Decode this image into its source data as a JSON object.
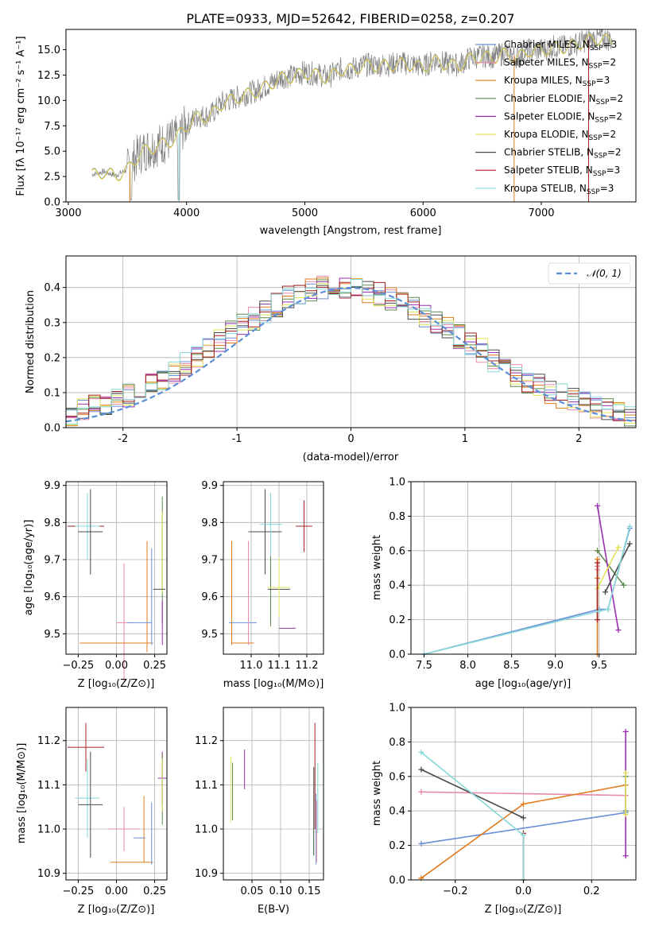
{
  "title": "PLATE=0933, MJD=52642, FIBERID=0258, z=0.207",
  "colors": {
    "Chabrier MILES": "#6a8fd8",
    "Salpeter MILES": "#e88aa8",
    "Kroupa MILES": "#e07c1e",
    "Chabrier ELODIE": "#5e8a4e",
    "Salpeter ELODIE": "#9a2fb0",
    "Kroupa ELODIE": "#e2e45a",
    "Chabrier STELIB": "#4a4a4a",
    "Salpeter STELIB": "#a52020",
    "Kroupa STELIB": "#88d8d8",
    "normal": "#5a8fd8",
    "data": "#808080"
  },
  "chart_data": [
    {
      "type": "line",
      "xlabel": "wavelength [Angstrom, rest frame]",
      "ylabel": "Flux [fλ 10⁻¹⁷ erg cm⁻² s⁻¹ A⁻¹]",
      "xlim": [
        2980,
        7800
      ],
      "ylim": [
        0,
        17
      ],
      "xticks": [
        3000,
        4000,
        5000,
        6000,
        7000
      ],
      "yticks": [
        0.0,
        2.5,
        5.0,
        7.5,
        10.0,
        12.5,
        15.0
      ],
      "x": [
        3200,
        3300,
        3400,
        3500,
        3600,
        3700,
        3800,
        3900,
        4000,
        4100,
        4200,
        4300,
        4400,
        4500,
        4600,
        4700,
        4800,
        4900,
        5000,
        5100,
        5200,
        5300,
        5400,
        5500,
        5600,
        5700,
        5800,
        5900,
        6000,
        6100,
        6200,
        6300,
        6400,
        6500,
        6600,
        6700,
        6800,
        6900,
        7000,
        7100,
        7200,
        7300,
        7400,
        7500,
        7600
      ],
      "y": [
        2.7,
        3.0,
        2.6,
        3.2,
        4.8,
        5.4,
        5.8,
        6.2,
        7.6,
        8.5,
        8.5,
        9.8,
        10.2,
        10.6,
        11.0,
        11.6,
        12.3,
        12.4,
        12.8,
        12.6,
        12.3,
        13.1,
        13.1,
        13.5,
        13.5,
        13.5,
        13.7,
        13.6,
        13.3,
        14.0,
        13.6,
        13.5,
        14.2,
        14.4,
        14.3,
        14.7,
        14.3,
        15.0,
        15.0,
        15.3,
        15.3,
        15.6,
        16.0,
        16.2,
        15.9
      ],
      "legend": [
        "Chabrier MILES, N_SSP=3",
        "Salpeter MILES, N_SSP=2",
        "Kroupa MILES, N_SSP=3",
        "Chabrier ELODIE, N_SSP=2",
        "Salpeter ELODIE, N_SSP=2",
        "Kroupa ELODIE, N_SSP=2",
        "Chabrier STELIB, N_SSP=2",
        "Salpeter STELIB, N_SSP=3",
        "Kroupa STELIB, N_SSP=3"
      ]
    },
    {
      "type": "line",
      "xlabel": "(data-model)/error",
      "ylabel": "Normed distribution",
      "xlim": [
        -2.5,
        2.5
      ],
      "ylim": [
        0,
        0.49
      ],
      "xticks": [
        -2,
        -1,
        0,
        1,
        2
      ],
      "yticks": [
        0.0,
        0.1,
        0.2,
        0.3,
        0.4
      ],
      "grid": true,
      "normal_label": "𝒩(0, 1)",
      "bins": [
        -2.5,
        -2.4,
        -2.3,
        -2.2,
        -2.1,
        -2.0,
        -1.9,
        -1.8,
        -1.7,
        -1.6,
        -1.5,
        -1.4,
        -1.3,
        -1.2,
        -1.1,
        -1.0,
        -0.9,
        -0.8,
        -0.7,
        -0.6,
        -0.5,
        -0.4,
        -0.3,
        -0.2,
        -0.1,
        0.0,
        0.1,
        0.2,
        0.3,
        0.4,
        0.5,
        0.6,
        0.7,
        0.8,
        0.9,
        1.0,
        1.1,
        1.2,
        1.3,
        1.4,
        1.5,
        1.6,
        1.7,
        1.8,
        1.9,
        2.0,
        2.1,
        2.2,
        2.3,
        2.4,
        2.5
      ],
      "hist_base": [
        0.04,
        0.05,
        0.06,
        0.07,
        0.08,
        0.09,
        0.11,
        0.12,
        0.14,
        0.16,
        0.18,
        0.2,
        0.22,
        0.25,
        0.27,
        0.29,
        0.31,
        0.33,
        0.35,
        0.37,
        0.38,
        0.39,
        0.4,
        0.41,
        0.4,
        0.4,
        0.39,
        0.38,
        0.37,
        0.36,
        0.34,
        0.32,
        0.3,
        0.28,
        0.26,
        0.24,
        0.22,
        0.19,
        0.17,
        0.15,
        0.13,
        0.12,
        0.1,
        0.09,
        0.08,
        0.07,
        0.06,
        0.05,
        0.04,
        0.03
      ]
    },
    {
      "type": "scatter",
      "xlabel": "Z [log₁₀(Z/Z⊙)]",
      "ylabel": "age  [log₁₀(age/yr)]",
      "xlim": [
        -0.33,
        0.33
      ],
      "ylim": [
        9.445,
        9.91
      ],
      "xticks": [
        -0.25,
        0.0,
        0.25
      ],
      "xticklabels": [
        "−0.25",
        "0.00",
        "0.25"
      ],
      "yticks": [
        9.5,
        9.6,
        9.7,
        9.8,
        9.9
      ],
      "points": [
        {
          "model": "Salpeter STELIB",
          "x": -0.2,
          "y": 9.79,
          "xerr": 0.12,
          "yerr": 0.0
        },
        {
          "model": "Kroupa STELIB",
          "x": -0.19,
          "y": 9.79,
          "xerr": 0.08,
          "yerr": 0.09
        },
        {
          "model": "Chabrier STELIB",
          "x": -0.17,
          "y": 9.775,
          "xerr": 0.08,
          "yerr": 0.115
        },
        {
          "model": "Salpeter MILES",
          "x": 0.05,
          "y": 9.53,
          "xerr": 0.05,
          "yerr": 0.16
        },
        {
          "model": "Kroupa MILES",
          "x": 0.0,
          "y": 9.475,
          "xerr": 0.24,
          "yerr": 0.0
        },
        {
          "model": "Kroupa MILES",
          "x": 0.2,
          "y": 9.6,
          "xerr": 0.0,
          "yerr": 0.15
        },
        {
          "model": "Chabrier MILES",
          "x": 0.15,
          "y": 9.53,
          "xerr": 0.08,
          "yerr": 0.0
        },
        {
          "model": "Chabrier MILES",
          "x": 0.23,
          "y": 9.6,
          "xerr": 0.0,
          "yerr": 0.13
        },
        {
          "model": "Chabrier ELODIE",
          "x": 0.3,
          "y": 9.7,
          "xerr": 0.0,
          "yerr": 0.17
        },
        {
          "model": "Kroupa ELODIE",
          "x": 0.3,
          "y": 9.72,
          "xerr": 0.0,
          "yerr": 0.11
        },
        {
          "model": "Salpeter ELODIE",
          "x": 0.3,
          "y": 9.53,
          "xerr": 0.0,
          "yerr": 0.06
        },
        {
          "model": "Chabrier STELIB",
          "x": 0.28,
          "y": 9.62,
          "xerr": 0.04,
          "yerr": 0.0
        }
      ]
    },
    {
      "type": "scatter",
      "xlabel": "mass [log₁₀(M/M⊙)]",
      "xlim": [
        10.9,
        11.26
      ],
      "ylim": [
        9.445,
        9.91
      ],
      "xticks": [
        11.0,
        11.1,
        11.2
      ],
      "yticks": [
        9.5,
        9.6,
        9.7,
        9.8,
        9.9
      ],
      "points": [
        {
          "model": "Kroupa MILES",
          "x": 10.93,
          "y": 9.61,
          "xerr": 0.0,
          "yerr": 0.14
        },
        {
          "model": "Kroupa MILES",
          "x": 10.97,
          "y": 9.475,
          "xerr": 0.04,
          "yerr": 0.0
        },
        {
          "model": "Chabrier MILES",
          "x": 10.97,
          "y": 9.53,
          "xerr": 0.05,
          "yerr": 0.0
        },
        {
          "model": "Salpeter MILES",
          "x": 10.99,
          "y": 9.61,
          "xerr": 0.0,
          "yerr": 0.14
        },
        {
          "model": "Chabrier STELIB",
          "x": 11.05,
          "y": 9.775,
          "xerr": 0.06,
          "yerr": 0.115
        },
        {
          "model": "Chabrier ELODIE",
          "x": 11.07,
          "y": 9.62,
          "xerr": 0.0,
          "yerr": 0.1
        },
        {
          "model": "Kroupa STELIB",
          "x": 11.07,
          "y": 9.795,
          "xerr": 0.04,
          "yerr": 0.085
        },
        {
          "model": "Salpeter STELIB",
          "x": 11.19,
          "y": 9.79,
          "xerr": 0.03,
          "yerr": 0.07
        },
        {
          "model": "Chabrier STELIB",
          "x": 11.1,
          "y": 9.62,
          "xerr": 0.04,
          "yerr": 0.0
        },
        {
          "model": "Kroupa ELODIE",
          "x": 11.1,
          "y": 9.625,
          "xerr": 0.04,
          "yerr": 0.08
        },
        {
          "model": "Salpeter ELODIE",
          "x": 11.13,
          "y": 9.515,
          "xerr": 0.03,
          "yerr": 0.0
        }
      ]
    },
    {
      "type": "line",
      "xlabel": "age  [log₁₀(age/yr)]",
      "ylabel": "mass weight",
      "xlim": [
        7.35,
        9.92
      ],
      "ylim": [
        0,
        1.0
      ],
      "xticks": [
        7.5,
        8.0,
        8.5,
        9.0,
        9.5
      ],
      "yticks": [
        0.0,
        0.2,
        0.4,
        0.6,
        0.8,
        1.0
      ],
      "grid": true,
      "series": [
        {
          "model": "Chabrier MILES",
          "x": [
            7.5,
            9.5,
            9.6,
            9.85
          ],
          "y": [
            0.0,
            0.26,
            0.26,
            0.73
          ]
        },
        {
          "model": "Salpeter MILES",
          "x": [
            9.48,
            9.48
          ],
          "y": [
            0.49,
            0.51
          ]
        },
        {
          "model": "Kroupa MILES",
          "x": [
            9.48,
            9.48,
            9.48
          ],
          "y": [
            0.0,
            0.44,
            0.55
          ]
        },
        {
          "model": "Chabrier ELODIE",
          "x": [
            9.48,
            9.78
          ],
          "y": [
            0.6,
            0.4
          ]
        },
        {
          "model": "Salpeter ELODIE",
          "x": [
            9.48,
            9.72
          ],
          "y": [
            0.86,
            0.14
          ]
        },
        {
          "model": "Kroupa ELODIE",
          "x": [
            9.48,
            9.72
          ],
          "y": [
            0.38,
            0.62
          ]
        },
        {
          "model": "Chabrier STELIB",
          "x": [
            9.57,
            9.85
          ],
          "y": [
            0.36,
            0.64
          ]
        },
        {
          "model": "Salpeter STELIB",
          "x": [
            9.48,
            9.48
          ],
          "y": [
            0.2,
            0.53
          ]
        },
        {
          "model": "Kroupa STELIB",
          "x": [
            7.5,
            9.5,
            9.6,
            9.85
          ],
          "y": [
            0.0,
            0.25,
            0.26,
            0.74
          ]
        }
      ]
    },
    {
      "type": "scatter",
      "xlabel": "Z [log₁₀(Z/Z⊙)]",
      "ylabel": "mass [log₁₀(M/M⊙)]",
      "xlim": [
        -0.33,
        0.33
      ],
      "ylim": [
        10.885,
        11.275
      ],
      "xticks": [
        -0.25,
        0.0,
        0.25
      ],
      "xticklabels": [
        "−0.25",
        "0.00",
        "0.25"
      ],
      "yticks": [
        10.9,
        11.0,
        11.1,
        11.2
      ],
      "points": [
        {
          "model": "Salpeter STELIB",
          "x": -0.2,
          "y": 11.185,
          "xerr": 0.12,
          "yerr": 0.055
        },
        {
          "model": "Kroupa STELIB",
          "x": -0.19,
          "y": 11.07,
          "xerr": 0.08,
          "yerr": 0.09
        },
        {
          "model": "Chabrier STELIB",
          "x": -0.17,
          "y": 11.055,
          "xerr": 0.08,
          "yerr": 0.12
        },
        {
          "model": "Salpeter MILES",
          "x": 0.05,
          "y": 11.0,
          "xerr": 0.1,
          "yerr": 0.05
        },
        {
          "model": "Kroupa MILES",
          "x": 0.1,
          "y": 10.925,
          "xerr": 0.14,
          "yerr": 0.0
        },
        {
          "model": "Kroupa MILES",
          "x": 0.18,
          "y": 11.0,
          "xerr": 0.0,
          "yerr": 0.075
        },
        {
          "model": "Chabrier MILES",
          "x": 0.15,
          "y": 10.98,
          "xerr": 0.04,
          "yerr": 0.0
        },
        {
          "model": "Chabrier MILES",
          "x": 0.23,
          "y": 10.99,
          "xerr": 0.0,
          "yerr": 0.07
        },
        {
          "model": "Salpeter ELODIE",
          "x": 0.3,
          "y": 11.115,
          "xerr": 0.03,
          "yerr": 0.06
        },
        {
          "model": "Chabrier ELODIE",
          "x": 0.3,
          "y": 11.09,
          "xerr": 0.0,
          "yerr": 0.08
        },
        {
          "model": "Kroupa ELODIE",
          "x": 0.3,
          "y": 11.1,
          "xerr": 0.0,
          "yerr": 0.06
        }
      ]
    },
    {
      "type": "scatter",
      "xlabel": "E(B-V)",
      "xlim": [
        0.0,
        0.175
      ],
      "ylim": [
        10.885,
        11.275
      ],
      "xticks": [
        0.05,
        0.1,
        0.15
      ],
      "xticklabels": [
        "0.05",
        "0.10",
        "0.15"
      ],
      "yticks": [
        10.9,
        11.0,
        11.1,
        11.2
      ],
      "points": [
        {
          "model": "Kroupa ELODIE",
          "x": 0.013,
          "y": 11.09,
          "xerr": 0.0,
          "yerr": 0.075
        },
        {
          "model": "Chabrier ELODIE",
          "x": 0.016,
          "y": 11.085,
          "xerr": 0.0,
          "yerr": 0.065
        },
        {
          "model": "Salpeter ELODIE",
          "x": 0.037,
          "y": 11.135,
          "xerr": 0.0,
          "yerr": 0.045
        },
        {
          "model": "Salpeter STELIB",
          "x": 0.16,
          "y": 11.12,
          "xerr": 0.0,
          "yerr": 0.12
        },
        {
          "model": "Chabrier STELIB",
          "x": 0.158,
          "y": 11.04,
          "xerr": 0.0,
          "yerr": 0.1
        },
        {
          "model": "Chabrier MILES",
          "x": 0.162,
          "y": 11.0,
          "xerr": 0.0,
          "yerr": 0.08
        },
        {
          "model": "Kroupa STELIB",
          "x": 0.165,
          "y": 11.07,
          "xerr": 0.0,
          "yerr": 0.08
        },
        {
          "model": "Salpeter MILES",
          "x": 0.163,
          "y": 10.995,
          "xerr": 0.0,
          "yerr": 0.07
        }
      ]
    },
    {
      "type": "line",
      "xlabel": "Z [log₁₀(Z/Z⊙)]",
      "ylabel": "mass weight",
      "xlim": [
        -0.33,
        0.33
      ],
      "ylim": [
        0,
        1.0
      ],
      "xticks": [
        -0.2,
        0.0,
        0.2
      ],
      "xticklabels": [
        "−0.2",
        "0.0",
        "0.2"
      ],
      "yticks": [
        0.0,
        0.2,
        0.4,
        0.6,
        0.8,
        1.0
      ],
      "grid": true,
      "series": [
        {
          "model": "Chabrier MILES",
          "x": [
            -0.3,
            0.3
          ],
          "y": [
            0.21,
            0.39
          ]
        },
        {
          "model": "Salpeter MILES",
          "x": [
            -0.3,
            0.3
          ],
          "y": [
            0.51,
            0.49
          ]
        },
        {
          "model": "Kroupa MILES",
          "x": [
            -0.3,
            0.0,
            0.3
          ],
          "y": [
            0.01,
            0.44,
            0.55
          ]
        },
        {
          "model": "Chabrier ELODIE",
          "x": [
            0.3,
            0.3
          ],
          "y": [
            0.4,
            0.6
          ]
        },
        {
          "model": "Salpeter ELODIE",
          "x": [
            0.3,
            0.3
          ],
          "y": [
            0.14,
            0.86
          ]
        },
        {
          "model": "Kroupa ELODIE",
          "x": [
            0.3,
            0.3
          ],
          "y": [
            0.38,
            0.62
          ]
        },
        {
          "model": "Chabrier STELIB",
          "x": [
            -0.3,
            0.0
          ],
          "y": [
            0.64,
            0.36
          ]
        },
        {
          "model": "Salpeter STELIB",
          "x": [
            0.0,
            0.0
          ],
          "y": [
            0.0,
            0.27
          ]
        },
        {
          "model": "Kroupa STELIB",
          "x": [
            -0.3,
            0.0,
            0.0
          ],
          "y": [
            0.74,
            0.26,
            0.0
          ]
        }
      ]
    }
  ]
}
